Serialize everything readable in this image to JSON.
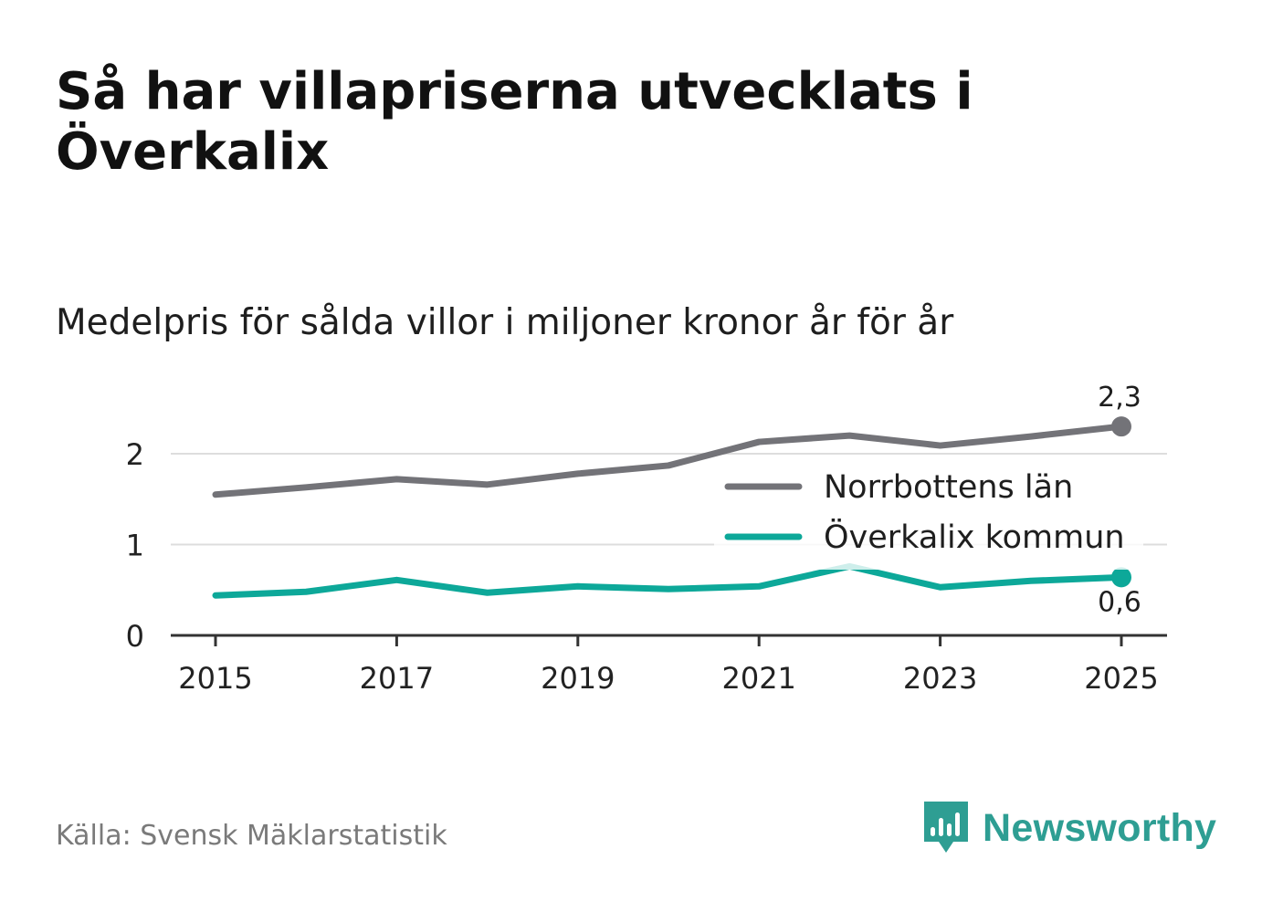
{
  "header": {
    "title": "Så har villapriserna utvecklats i Överkalix",
    "subtitle": "Medelpris för sålda villor i miljoner kronor år för år"
  },
  "footer": {
    "source": "Källa: Svensk Mäklarstatistik",
    "brand": "Newsworthy"
  },
  "colors": {
    "norrbotten": "#737378",
    "overkalix": "#0da899",
    "grid": "#dddddd",
    "axis": "#333333",
    "brand": "#2e9e93"
  },
  "chart_data": {
    "type": "line",
    "title": "Så har villapriserna utvecklats i Överkalix",
    "subtitle": "Medelpris för sålda villor i miljoner kronor år för år",
    "xlabel": "",
    "ylabel": "",
    "x": [
      2015,
      2016,
      2017,
      2018,
      2019,
      2020,
      2021,
      2022,
      2023,
      2024,
      2025
    ],
    "x_ticks": [
      "2015",
      "2017",
      "2019",
      "2021",
      "2023",
      "2025"
    ],
    "y_ticks": [
      "0",
      "1",
      "2"
    ],
    "ylim": [
      0,
      2.6
    ],
    "grid": true,
    "legend_position": "right-center",
    "series": [
      {
        "name": "Norrbottens län",
        "values": [
          1.55,
          1.63,
          1.72,
          1.66,
          1.78,
          1.87,
          2.13,
          2.2,
          2.09,
          2.19,
          2.3
        ],
        "end_label": "2,3"
      },
      {
        "name": "Överkalix kommun",
        "values": [
          0.44,
          0.48,
          0.61,
          0.47,
          0.54,
          0.51,
          0.54,
          0.76,
          0.53,
          0.6,
          0.64
        ],
        "end_label": "0,6"
      }
    ]
  }
}
